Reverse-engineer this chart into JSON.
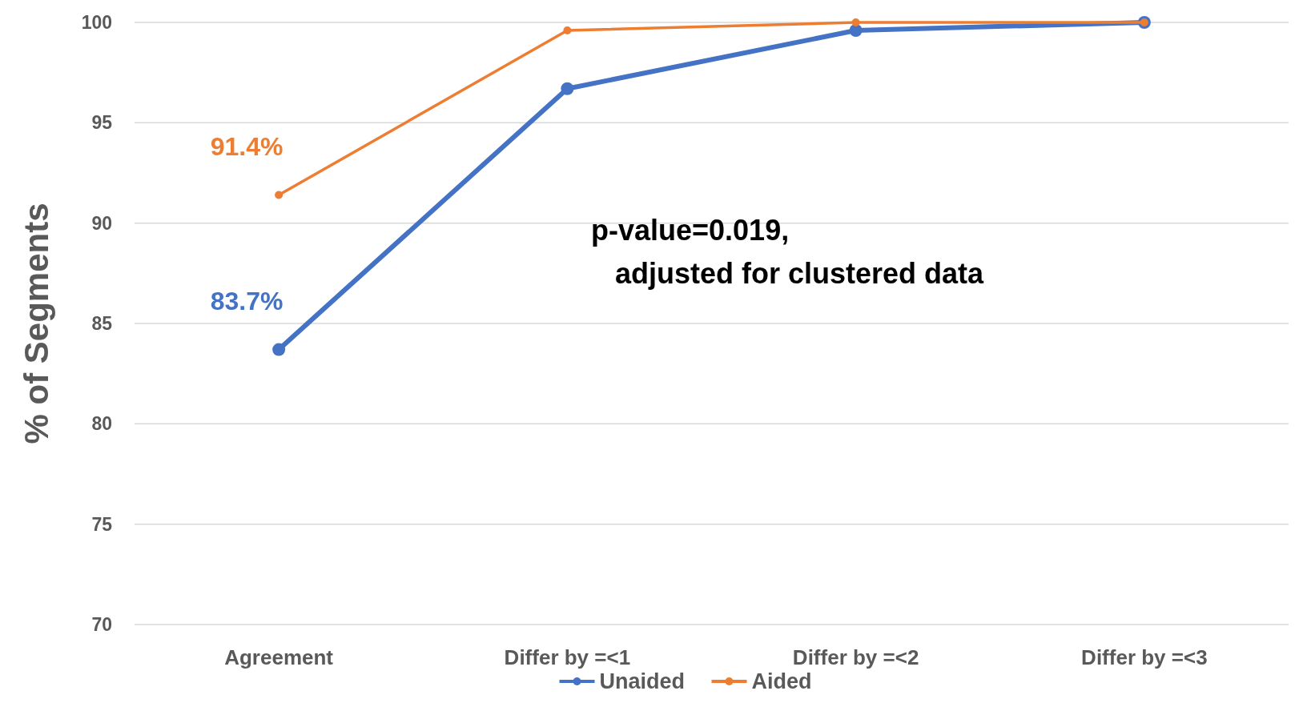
{
  "chart_data": {
    "type": "line",
    "ylabel": "% of Segments",
    "categories": [
      "Agreement",
      "Differ by =<1",
      "Differ by =<2",
      "Differ by =<3"
    ],
    "series": [
      {
        "name": "Unaided",
        "color": "#4472c4",
        "values": [
          83.7,
          96.7,
          99.6,
          100
        ],
        "value_labels": [
          "83.7%",
          null,
          null,
          null
        ]
      },
      {
        "name": "Aided",
        "color": "#ed7d31",
        "values": [
          91.4,
          99.6,
          100,
          100
        ],
        "value_labels": [
          "91.4%",
          null,
          null,
          null
        ]
      }
    ],
    "ylim": [
      70,
      100
    ],
    "yticks": [
      70,
      75,
      80,
      85,
      90,
      95,
      100
    ],
    "grid": "y",
    "legend": "bottom",
    "marker": "circle",
    "line_style": "solid",
    "annotations": [
      "p-value=0.019,\n   adjusted for clustered data"
    ]
  }
}
